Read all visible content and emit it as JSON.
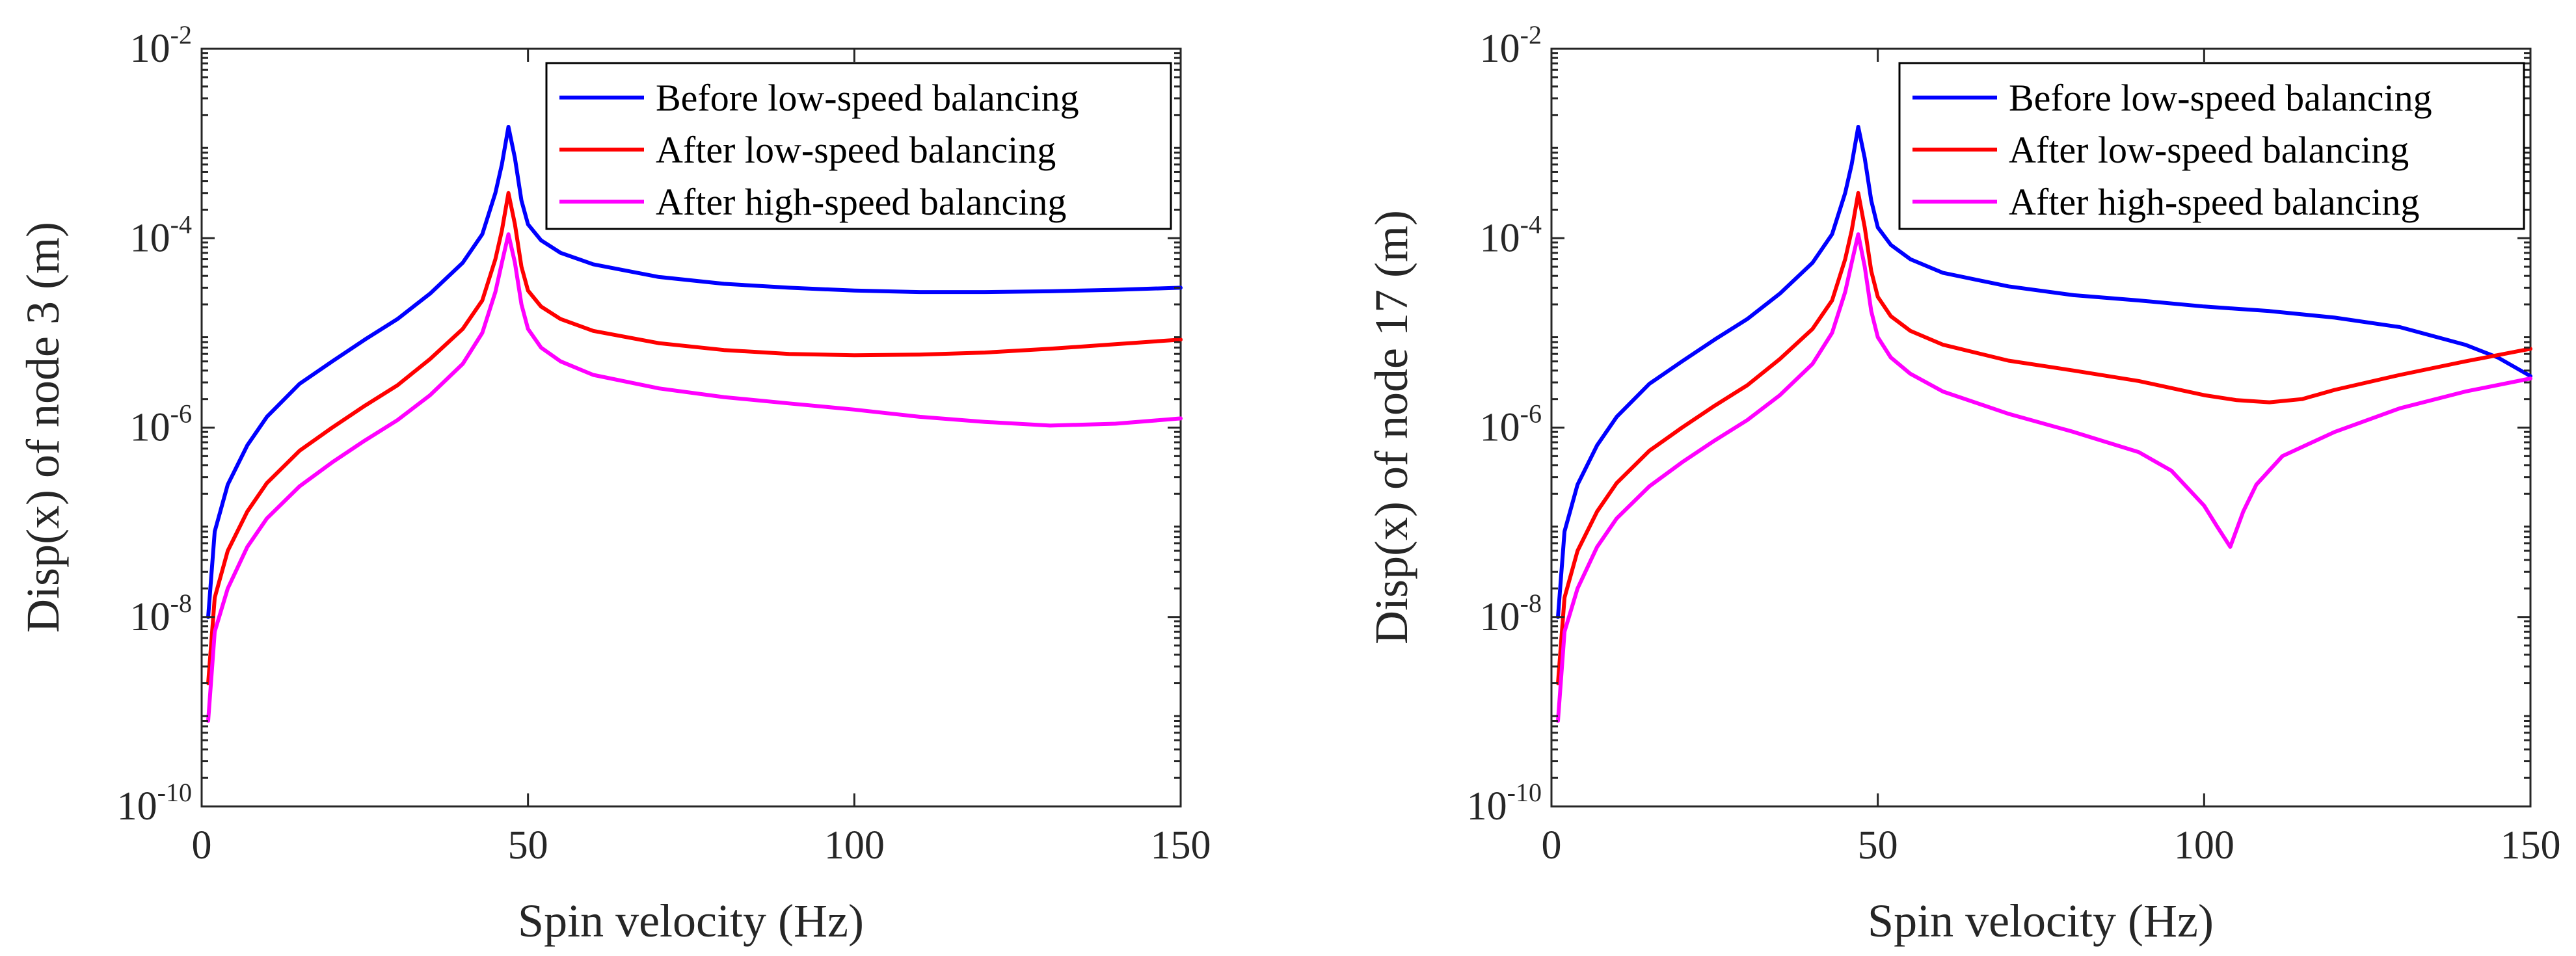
{
  "colors": {
    "blue": "#0000ff",
    "red": "#ff0000",
    "magenta": "#ff00ff",
    "axis": "#262626"
  },
  "chart_data": [
    {
      "type": "line",
      "xlabel": "Spin velocity (Hz)",
      "ylabel": "Disp(x) of node 3 (m)",
      "xlim": [
        0,
        150
      ],
      "ylim": [
        1e-10,
        0.01
      ],
      "yscale": "log",
      "xticks": [
        0,
        50,
        100,
        150
      ],
      "yticks": [
        {
          "base": "10",
          "exp": "-10",
          "value": 1e-10
        },
        {
          "base": "10",
          "exp": "-8",
          "value": 1e-08
        },
        {
          "base": "10",
          "exp": "-6",
          "value": 1e-06
        },
        {
          "base": "10",
          "exp": "-4",
          "value": 0.0001
        },
        {
          "base": "10",
          "exp": "-2",
          "value": 0.01
        }
      ],
      "legend_position": "top-right",
      "series": [
        {
          "name": "Before low-speed balancing",
          "color": "#0000ff",
          "points": [
            [
              1,
              1e-08
            ],
            [
              2,
              8e-08
            ],
            [
              4,
              2.5e-07
            ],
            [
              7,
              6.5e-07
            ],
            [
              10,
              1.3e-06
            ],
            [
              15,
              2.9e-06
            ],
            [
              20,
              5e-06
            ],
            [
              25,
              8.5e-06
            ],
            [
              30,
              1.4e-05
            ],
            [
              35,
              2.6e-05
            ],
            [
              40,
              5.5e-05
            ],
            [
              43,
              0.00011
            ],
            [
              45,
              0.0003
            ],
            [
              46,
              0.0006
            ],
            [
              47,
              0.0015
            ],
            [
              48,
              0.0007
            ],
            [
              49,
              0.00025
            ],
            [
              50,
              0.00014
            ],
            [
              52,
              9.5e-05
            ],
            [
              55,
              7e-05
            ],
            [
              60,
              5.3e-05
            ],
            [
              70,
              3.9e-05
            ],
            [
              80,
              3.3e-05
            ],
            [
              90,
              3e-05
            ],
            [
              100,
              2.8e-05
            ],
            [
              110,
              2.7e-05
            ],
            [
              120,
              2.7e-05
            ],
            [
              130,
              2.75e-05
            ],
            [
              140,
              2.85e-05
            ],
            [
              150,
              3e-05
            ]
          ]
        },
        {
          "name": "After low-speed balancing",
          "color": "#ff0000",
          "points": [
            [
              1,
              2e-09
            ],
            [
              2,
              1.6e-08
            ],
            [
              4,
              5e-08
            ],
            [
              7,
              1.3e-07
            ],
            [
              10,
              2.6e-07
            ],
            [
              15,
              5.7e-07
            ],
            [
              20,
              1e-06
            ],
            [
              25,
              1.7e-06
            ],
            [
              30,
              2.8e-06
            ],
            [
              35,
              5.3e-06
            ],
            [
              40,
              1.1e-05
            ],
            [
              43,
              2.2e-05
            ],
            [
              45,
              6e-05
            ],
            [
              46,
              0.00012
            ],
            [
              47,
              0.0003
            ],
            [
              48,
              0.00014
            ],
            [
              49,
              5e-05
            ],
            [
              50,
              2.8e-05
            ],
            [
              52,
              1.9e-05
            ],
            [
              55,
              1.4e-05
            ],
            [
              60,
              1.05e-05
            ],
            [
              70,
              7.8e-06
            ],
            [
              80,
              6.6e-06
            ],
            [
              90,
              6e-06
            ],
            [
              100,
              5.8e-06
            ],
            [
              110,
              5.9e-06
            ],
            [
              120,
              6.2e-06
            ],
            [
              130,
              6.8e-06
            ],
            [
              140,
              7.6e-06
            ],
            [
              150,
              8.5e-06
            ]
          ]
        },
        {
          "name": "After high-speed balancing",
          "color": "#ff00ff",
          "points": [
            [
              1,
              8e-10
            ],
            [
              2,
              7e-09
            ],
            [
              4,
              2e-08
            ],
            [
              7,
              5.5e-08
            ],
            [
              10,
              1.1e-07
            ],
            [
              15,
              2.4e-07
            ],
            [
              20,
              4.3e-07
            ],
            [
              25,
              7.3e-07
            ],
            [
              30,
              1.2e-06
            ],
            [
              35,
              2.2e-06
            ],
            [
              40,
              4.7e-06
            ],
            [
              43,
              1e-05
            ],
            [
              45,
              2.7e-05
            ],
            [
              46,
              5.5e-05
            ],
            [
              47,
              0.00011
            ],
            [
              48,
              5.5e-05
            ],
            [
              49,
              2e-05
            ],
            [
              50,
              1.1e-05
            ],
            [
              52,
              7e-06
            ],
            [
              55,
              5e-06
            ],
            [
              60,
              3.6e-06
            ],
            [
              70,
              2.6e-06
            ],
            [
              80,
              2.1e-06
            ],
            [
              90,
              1.8e-06
            ],
            [
              100,
              1.55e-06
            ],
            [
              110,
              1.3e-06
            ],
            [
              120,
              1.15e-06
            ],
            [
              130,
              1.05e-06
            ],
            [
              140,
              1.1e-06
            ],
            [
              150,
              1.25e-06
            ]
          ]
        }
      ]
    },
    {
      "type": "line",
      "xlabel": "Spin velocity (Hz)",
      "ylabel": "Disp(x) of node 17 (m)",
      "xlim": [
        0,
        150
      ],
      "ylim": [
        1e-10,
        0.01
      ],
      "yscale": "log",
      "xticks": [
        0,
        50,
        100,
        150
      ],
      "yticks": [
        {
          "base": "10",
          "exp": "-10",
          "value": 1e-10
        },
        {
          "base": "10",
          "exp": "-8",
          "value": 1e-08
        },
        {
          "base": "10",
          "exp": "-6",
          "value": 1e-06
        },
        {
          "base": "10",
          "exp": "-4",
          "value": 0.0001
        },
        {
          "base": "10",
          "exp": "-2",
          "value": 0.01
        }
      ],
      "legend_position": "top-right",
      "series": [
        {
          "name": "Before low-speed balancing",
          "color": "#0000ff",
          "points": [
            [
              1,
              1e-08
            ],
            [
              2,
              8e-08
            ],
            [
              4,
              2.5e-07
            ],
            [
              7,
              6.5e-07
            ],
            [
              10,
              1.3e-06
            ],
            [
              15,
              2.9e-06
            ],
            [
              20,
              5e-06
            ],
            [
              25,
              8.5e-06
            ],
            [
              30,
              1.4e-05
            ],
            [
              35,
              2.6e-05
            ],
            [
              40,
              5.5e-05
            ],
            [
              43,
              0.00011
            ],
            [
              45,
              0.0003
            ],
            [
              46,
              0.0006
            ],
            [
              47,
              0.0015
            ],
            [
              48,
              0.0007
            ],
            [
              49,
              0.00025
            ],
            [
              50,
              0.00013
            ],
            [
              52,
              8.5e-05
            ],
            [
              55,
              6e-05
            ],
            [
              60,
              4.3e-05
            ],
            [
              70,
              3.1e-05
            ],
            [
              80,
              2.5e-05
            ],
            [
              90,
              2.2e-05
            ],
            [
              100,
              1.9e-05
            ],
            [
              110,
              1.7e-05
            ],
            [
              120,
              1.45e-05
            ],
            [
              130,
              1.15e-05
            ],
            [
              140,
              7.5e-06
            ],
            [
              145,
              5.5e-06
            ],
            [
              150,
              3.5e-06
            ]
          ]
        },
        {
          "name": "After low-speed balancing",
          "color": "#ff0000",
          "points": [
            [
              1,
              2e-09
            ],
            [
              2,
              1.6e-08
            ],
            [
              4,
              5e-08
            ],
            [
              7,
              1.3e-07
            ],
            [
              10,
              2.6e-07
            ],
            [
              15,
              5.7e-07
            ],
            [
              20,
              1e-06
            ],
            [
              25,
              1.7e-06
            ],
            [
              30,
              2.8e-06
            ],
            [
              35,
              5.3e-06
            ],
            [
              40,
              1.1e-05
            ],
            [
              43,
              2.2e-05
            ],
            [
              45,
              6e-05
            ],
            [
              46,
              0.00012
            ],
            [
              47,
              0.0003
            ],
            [
              48,
              0.00013
            ],
            [
              49,
              4.5e-05
            ],
            [
              50,
              2.4e-05
            ],
            [
              52,
              1.5e-05
            ],
            [
              55,
              1.05e-05
            ],
            [
              60,
              7.5e-06
            ],
            [
              70,
              5.1e-06
            ],
            [
              80,
              4e-06
            ],
            [
              90,
              3.1e-06
            ],
            [
              100,
              2.2e-06
            ],
            [
              105,
              1.95e-06
            ],
            [
              110,
              1.85e-06
            ],
            [
              115,
              2e-06
            ],
            [
              120,
              2.5e-06
            ],
            [
              130,
              3.6e-06
            ],
            [
              140,
              5e-06
            ],
            [
              150,
              6.8e-06
            ]
          ]
        },
        {
          "name": "After high-speed balancing",
          "color": "#ff00ff",
          "points": [
            [
              1,
              8e-10
            ],
            [
              2,
              7e-09
            ],
            [
              4,
              2e-08
            ],
            [
              7,
              5.5e-08
            ],
            [
              10,
              1.1e-07
            ],
            [
              15,
              2.4e-07
            ],
            [
              20,
              4.3e-07
            ],
            [
              25,
              7.3e-07
            ],
            [
              30,
              1.2e-06
            ],
            [
              35,
              2.2e-06
            ],
            [
              40,
              4.7e-06
            ],
            [
              43,
              1e-05
            ],
            [
              45,
              2.7e-05
            ],
            [
              46,
              5.5e-05
            ],
            [
              47,
              0.00011
            ],
            [
              48,
              5e-05
            ],
            [
              49,
              1.7e-05
            ],
            [
              50,
              9e-06
            ],
            [
              52,
              5.5e-06
            ],
            [
              55,
              3.7e-06
            ],
            [
              60,
              2.4e-06
            ],
            [
              70,
              1.4e-06
            ],
            [
              80,
              9e-07
            ],
            [
              90,
              5.5e-07
            ],
            [
              95,
              3.5e-07
            ],
            [
              100,
              1.5e-07
            ],
            [
              102,
              9e-08
            ],
            [
              104,
              5.5e-08
            ],
            [
              106,
              1.3e-07
            ],
            [
              108,
              2.5e-07
            ],
            [
              112,
              5e-07
            ],
            [
              120,
              9e-07
            ],
            [
              130,
              1.6e-06
            ],
            [
              140,
              2.4e-06
            ],
            [
              150,
              3.3e-06
            ]
          ]
        }
      ]
    }
  ]
}
